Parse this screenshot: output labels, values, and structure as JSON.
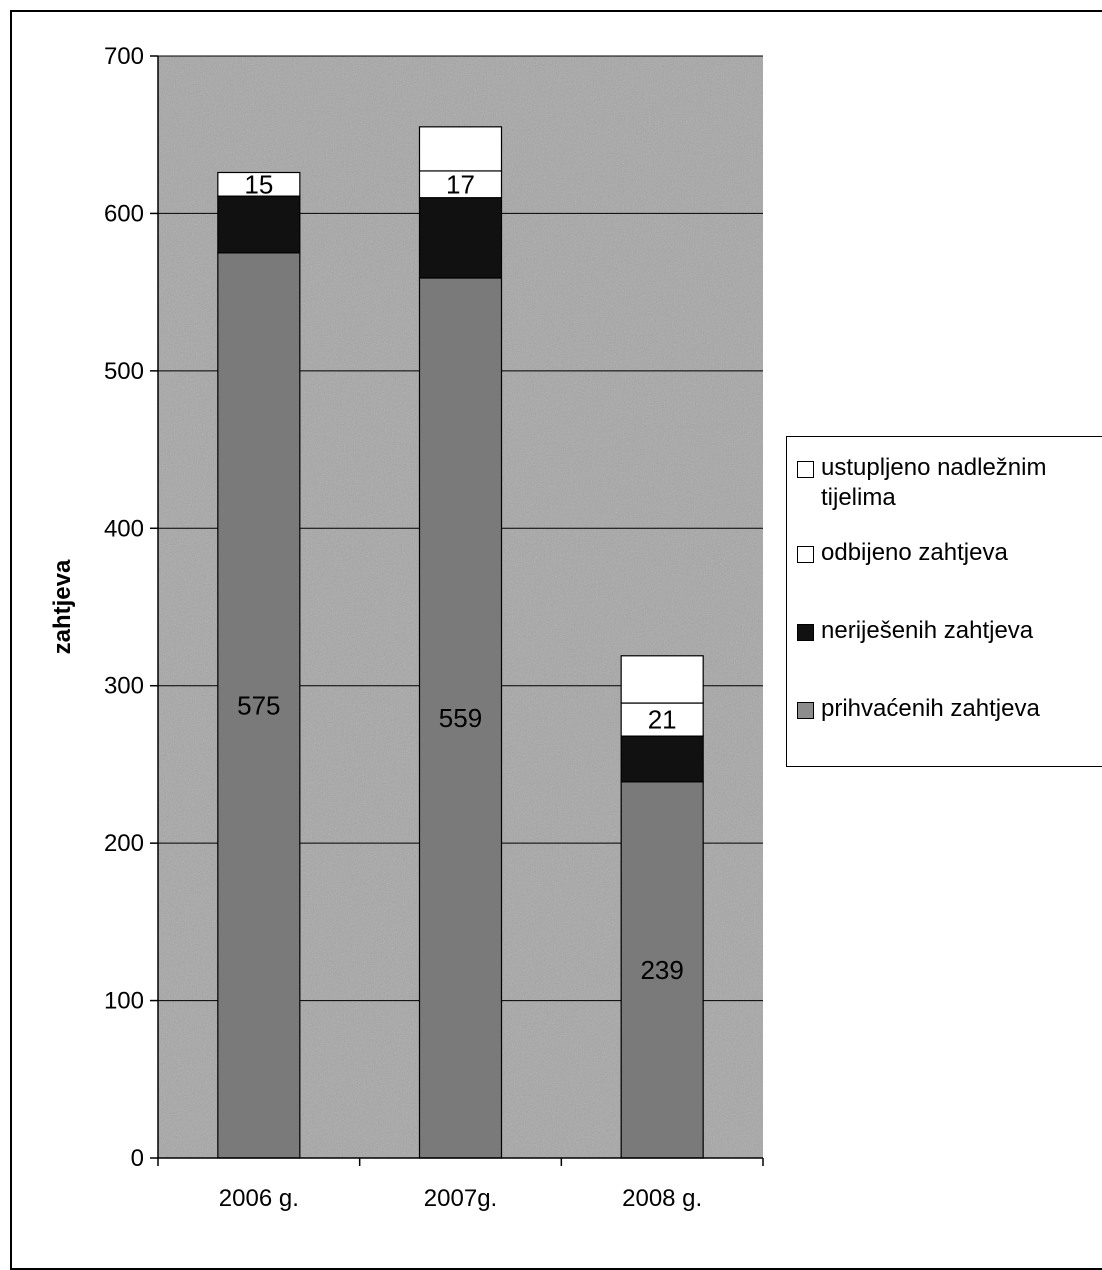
{
  "chart_data": {
    "type": "bar",
    "stacked": true,
    "categories": [
      "2006 g.",
      "2007g.",
      "2008 g."
    ],
    "ylabel": "zahtjeva",
    "xlabel": "",
    "ylim": [
      0,
      700
    ],
    "yticks": [
      0,
      100,
      200,
      300,
      400,
      500,
      600,
      700
    ],
    "grid": true,
    "legend_position": "right",
    "series": [
      {
        "name": "prihvaćenih zahtjeva",
        "values": [
          575,
          559,
          239
        ],
        "color": "#7a7a7a",
        "labeled": true
      },
      {
        "name": "neriješenih zahtjeva",
        "values": [
          36,
          51,
          29
        ],
        "color": "#111111",
        "labeled": false
      },
      {
        "name": "odbijeno zahtjeva",
        "values": [
          15,
          17,
          21
        ],
        "color": "#ffffff",
        "labeled": true
      },
      {
        "name": "ustupljeno nadležnim tijelima",
        "values": [
          0,
          28,
          30
        ],
        "color": "#ffffff",
        "labeled": false
      }
    ]
  },
  "legend": {
    "items": [
      {
        "label": "ustupljeno nadležnim tijelima",
        "swatch": "#ffffff"
      },
      {
        "label": "odbijeno zahtjeva",
        "swatch": "#ffffff"
      },
      {
        "label": "neriješenih zahtjeva",
        "swatch": "#111111"
      },
      {
        "label": "prihvaćenih zahtjeva",
        "swatch": "#8c8c8c"
      }
    ]
  }
}
